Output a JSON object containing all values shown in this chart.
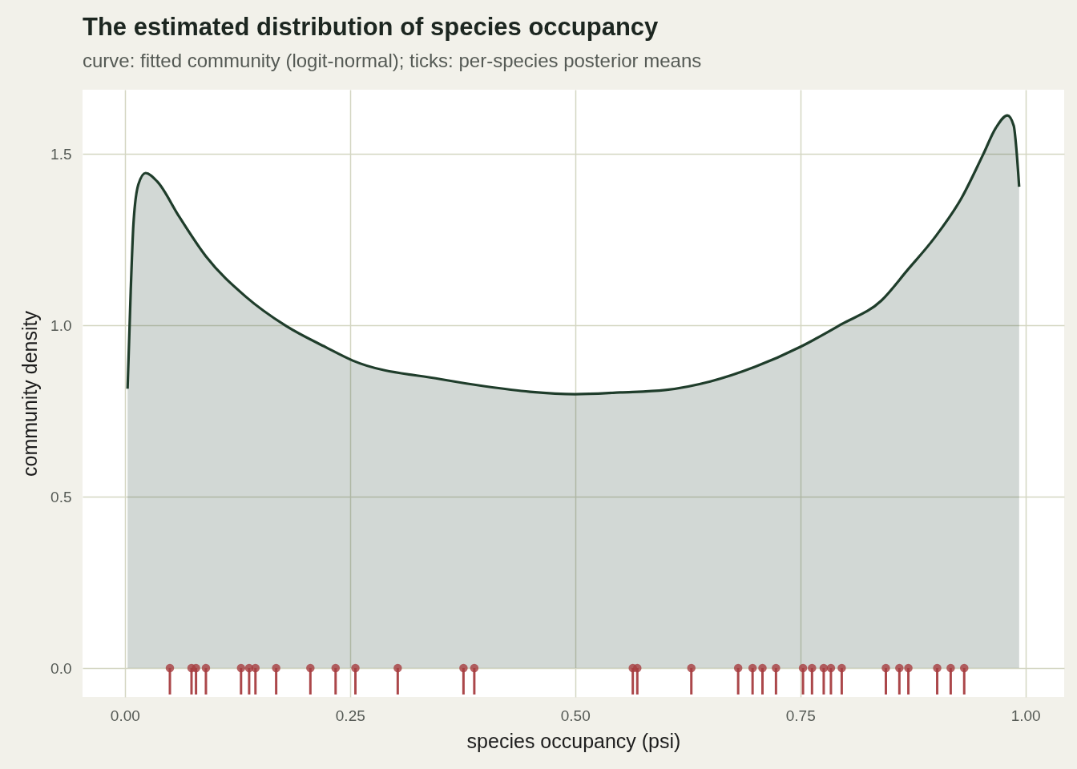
{
  "chart_data": {
    "type": "area",
    "title": "The estimated distribution of species occupancy",
    "subtitle": "curve: fitted community (logit-normal); ticks: per-species posterior means",
    "xlabel": "species occupancy (psi)",
    "ylabel": "community density",
    "xlim": [
      -0.047,
      1.043
    ],
    "ylim": [
      -0.084,
      1.687
    ],
    "xticks": [
      {
        "value": 0,
        "label": "0.00"
      },
      {
        "value": 0.25,
        "label": "0.25"
      },
      {
        "value": 0.5,
        "label": "0.50"
      },
      {
        "value": 0.75,
        "label": "0.75"
      },
      {
        "value": 1,
        "label": "1.00"
      }
    ],
    "yticks": [
      {
        "value": 0,
        "label": "0.0"
      },
      {
        "value": 0.5,
        "label": "0.5"
      },
      {
        "value": 1,
        "label": "1.0"
      },
      {
        "value": 1.5,
        "label": "1.5"
      }
    ],
    "grid": true,
    "series": [
      {
        "color": "#1f3d2b",
        "x": [
          0.003,
          0.0065,
          0.0095,
          0.015,
          0.023,
          0.036,
          0.06,
          0.09,
          0.134,
          0.179,
          0.223,
          0.253,
          0.35,
          0.4,
          0.45,
          0.5,
          0.55,
          0.6,
          0.65,
          0.7,
          0.75,
          0.795,
          0.84,
          0.869,
          0.899,
          0.929,
          0.953,
          0.967,
          0.98,
          0.987,
          0.99,
          0.993
        ],
        "values": [
          0.815,
          1.1,
          1.294,
          1.411,
          1.444,
          1.419,
          1.318,
          1.201,
          1.084,
          0.998,
          0.936,
          0.897,
          0.843,
          0.822,
          0.806,
          0.799,
          0.804,
          0.811,
          0.836,
          0.879,
          0.937,
          1.002,
          1.072,
          1.161,
          1.255,
          1.371,
          1.498,
          1.575,
          1.612,
          1.582,
          1.512,
          1.404
        ]
      },
      {
        "type": "scatter",
        "color": "#a63d40",
        "marker": "circle",
        "x": [
          0.05,
          0.074,
          0.079,
          0.09,
          0.129,
          0.138,
          0.145,
          0.168,
          0.206,
          0.234,
          0.256,
          0.303,
          0.376,
          0.388,
          0.564,
          0.569,
          0.629,
          0.681,
          0.697,
          0.708,
          0.723,
          0.753,
          0.763,
          0.776,
          0.784,
          0.796,
          0.845,
          0.86,
          0.87,
          0.902,
          0.917,
          0.932
        ],
        "values": [
          0,
          0,
          0,
          0,
          0,
          0,
          0,
          0,
          0,
          0,
          0,
          0,
          0,
          0,
          0,
          0,
          0,
          0,
          0,
          0,
          0,
          0,
          0,
          0,
          0,
          0,
          0,
          0,
          0,
          0,
          0,
          0
        ],
        "errors": [
          [
            -0.077,
            0
          ],
          [
            -0.077,
            0
          ],
          [
            -0.077,
            0
          ],
          [
            -0.077,
            0
          ],
          [
            -0.077,
            0
          ],
          [
            -0.077,
            0
          ],
          [
            -0.077,
            0
          ],
          [
            -0.077,
            0
          ],
          [
            -0.077,
            0
          ],
          [
            -0.077,
            0
          ],
          [
            -0.077,
            0
          ],
          [
            -0.077,
            0
          ],
          [
            -0.077,
            0
          ],
          [
            -0.077,
            0
          ],
          [
            -0.077,
            0
          ],
          [
            -0.077,
            0
          ],
          [
            -0.077,
            0
          ],
          [
            -0.077,
            0
          ],
          [
            -0.077,
            0
          ],
          [
            -0.077,
            0
          ],
          [
            -0.077,
            0
          ],
          [
            -0.077,
            0
          ],
          [
            -0.077,
            0
          ],
          [
            -0.077,
            0
          ],
          [
            -0.077,
            0
          ],
          [
            -0.077,
            0
          ],
          [
            -0.077,
            0
          ],
          [
            -0.077,
            0
          ],
          [
            -0.077,
            0
          ],
          [
            -0.077,
            0
          ],
          [
            -0.077,
            0
          ],
          [
            -0.077,
            0
          ]
        ]
      }
    ]
  }
}
